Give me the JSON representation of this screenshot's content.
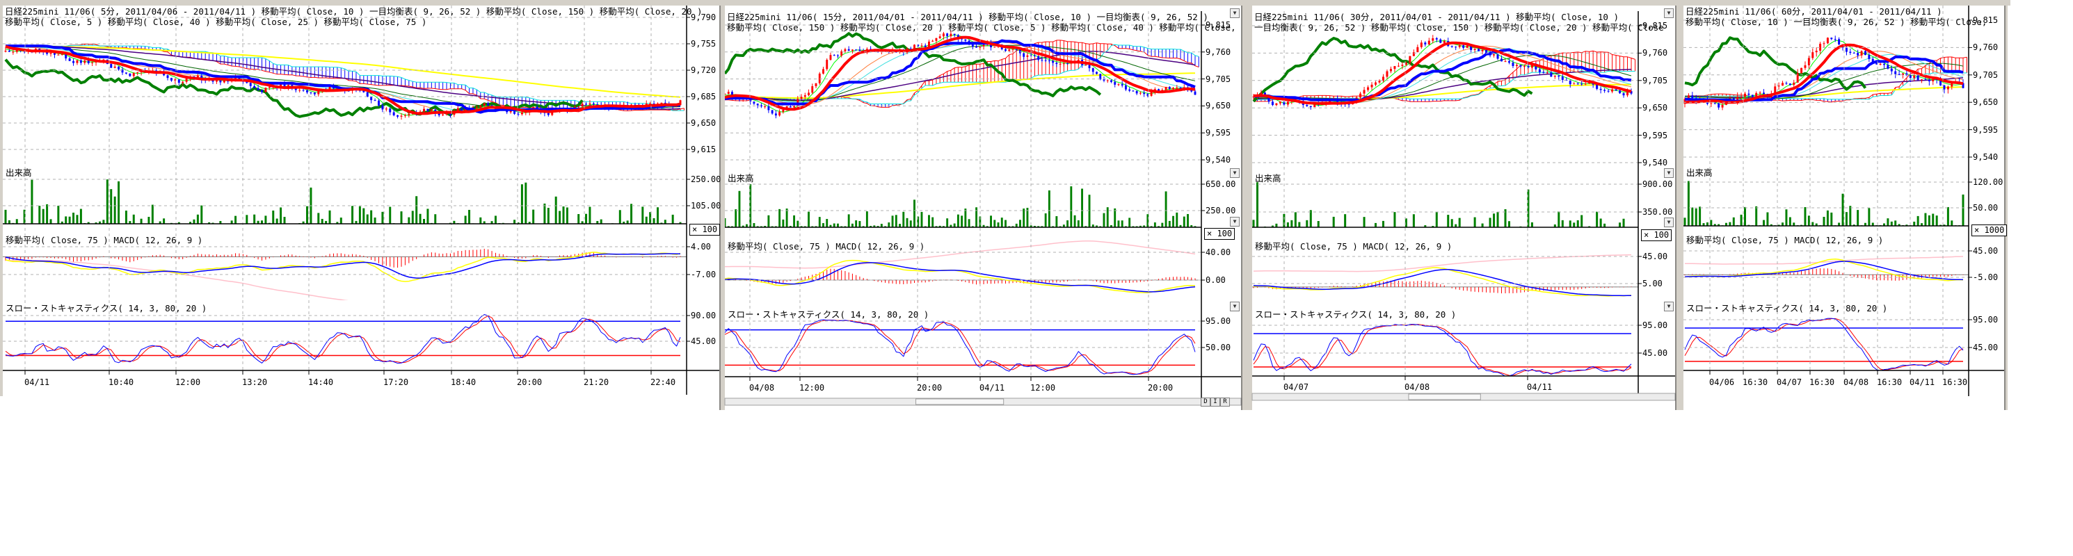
{
  "colors": {
    "up_candle": "#ff0000",
    "down_candle": "#0000ff",
    "tenkan": "#ff0000",
    "kijun": "#0000ff",
    "chikou": "#008000",
    "volume": "#008000",
    "macd": "#0000ff",
    "signal": "#ffff00",
    "macd_ma": "#ffc0cb",
    "stoch_k": "#0000ff",
    "stoch_d": "#ff0000",
    "stoch_upper": "#0000ff",
    "stoch_lower": "#ff0000",
    "grid": "#b0b0b0",
    "chrome": "#d4d0c8"
  },
  "panes": [
    {
      "header_line1": "日経225mini 11/06( 5分, 2011/04/06 - 2011/04/11 )  移動平均( Close, 10 )  一目均衡表( 9, 26, 52 )  移動平均( Close, 150 )  移動平均( Close, 20 )",
      "header_line2": "移動平均( Close, 5 )  移動平均( Close, 40 )  移動平均( Close, 25 )  移動平均( Close, 75 )",
      "price_ticks": [
        "9,790",
        "9,755",
        "9,720",
        "9,685",
        "9,650",
        "9,615"
      ],
      "volume_label": "出来高",
      "volume_ticks": [
        "250.00",
        "105.00"
      ],
      "volume_multiplier": "× 100",
      "macd_label": "移動平均( Close, 75 )  MACD( 12, 26, 9 )",
      "macd_ticks": [
        "4.00",
        "-7.00"
      ],
      "stoch_label": "スロー・ストキャスティクス( 14, 3, 80, 20 )",
      "stoch_ticks": [
        "90.00",
        "45.00"
      ],
      "time_labels": [
        "04/11",
        "10:40",
        "12:00",
        "13:20",
        "14:40",
        "17:20",
        "18:40",
        "20:00",
        "21:20",
        "22:40"
      ]
    },
    {
      "header_line1": "日経225mini 11/06( 15分, 2011/04/01 - 2011/04/11 )  移動平均( Close, 10 )  一目均衡表( 9, 26, 52 )",
      "header_line2": "移動平均( Close, 150 )  移動平均( Close, 20 )  移動平均( Close, 5 )  移動平均( Close, 40 )  移動平均( Close,",
      "price_ticks": [
        "9,815",
        "9,760",
        "9,705",
        "9,650",
        "9,595",
        "9,540"
      ],
      "volume_label": "出来高",
      "volume_ticks": [
        "650.00",
        "250.00"
      ],
      "volume_multiplier": "× 100",
      "macd_label": "移動平均( Close, 75 )  MACD( 12, 26, 9 )",
      "macd_ticks": [
        "40.00",
        "0.00"
      ],
      "stoch_label": "スロー・ストキャスティクス( 14, 3, 80, 20 )",
      "stoch_ticks": [
        "95.00",
        "50.00"
      ],
      "time_labels": [
        "04/08",
        "12:00",
        "20:00",
        "04/11",
        "12:00",
        "20:00"
      ],
      "nav_buttons": [
        "D",
        "I",
        "R"
      ]
    },
    {
      "header_line1": "日経225mini 11/06( 30分, 2011/04/01 - 2011/04/11 )  移動平均( Close, 10 )",
      "header_line2": "一目均衡表( 9, 26, 52 )  移動平均( Close, 150 )  移動平均( Close, 20 )  移動平均( Close",
      "price_ticks": [
        "9,815",
        "9,760",
        "9,705",
        "9,650",
        "9,595",
        "9,540"
      ],
      "volume_label": "出来高",
      "volume_ticks": [
        "900.00",
        "350.00"
      ],
      "volume_multiplier": "× 100",
      "macd_label": "移動平均( Close, 75 )  MACD( 12, 26, 9 )",
      "macd_ticks": [
        "45.00",
        "5.00"
      ],
      "stoch_label": "スロー・ストキャスティクス( 14, 3, 80, 20 )",
      "stoch_ticks": [
        "95.00",
        "45.00"
      ],
      "time_labels": [
        "04/07",
        "04/08",
        "04/11"
      ]
    },
    {
      "header_line1": "日経225mini 11/06( 60分, 2011/04/01 - 2011/04/11 )",
      "header_line2": "移動平均( Close, 10 )  一目均衡表( 9, 26, 52 )  移動平均( Close,",
      "price_ticks": [
        "9,815",
        "9,760",
        "9,705",
        "9,650",
        "9,595",
        "9,540"
      ],
      "volume_label": "出来高",
      "volume_ticks": [
        "120.00",
        "50.00"
      ],
      "volume_multiplier": "× 1000",
      "macd_label": "移動平均( Close, 75 )  MACD( 12, 26, 9 )",
      "macd_ticks": [
        "45.00",
        "-5.00"
      ],
      "stoch_label": "スロー・ストキャスティクス( 14, 3, 80, 20 )",
      "stoch_ticks": [
        "95.00",
        "45.00"
      ],
      "time_labels": [
        "04/06",
        "16:30",
        "04/07",
        "16:30",
        "04/08",
        "16:30",
        "04/11",
        "16:30"
      ]
    }
  ]
}
